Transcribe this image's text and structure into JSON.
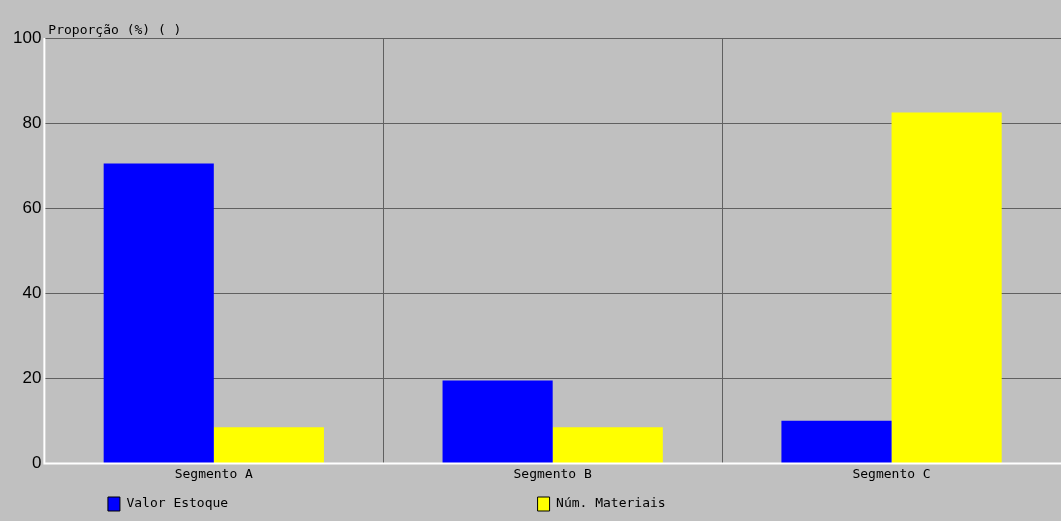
{
  "chart_data": {
    "type": "bar",
    "ylabel": "Proporção (%) ( )",
    "categories": [
      "Segmento A",
      "Segmento B",
      "Segmento C"
    ],
    "series": [
      {
        "name": "Valor Estoque",
        "color": "#0000ff",
        "values": [
          70.5,
          19.5,
          10
        ]
      },
      {
        "name": "Núm. Materiais",
        "color": "#ffff00",
        "values": [
          8.5,
          8.5,
          82.5
        ]
      }
    ],
    "ylim": [
      0,
      100
    ],
    "yticks": [
      0,
      20,
      40,
      60,
      80,
      100
    ],
    "grid": true,
    "legend": "bottom"
  }
}
